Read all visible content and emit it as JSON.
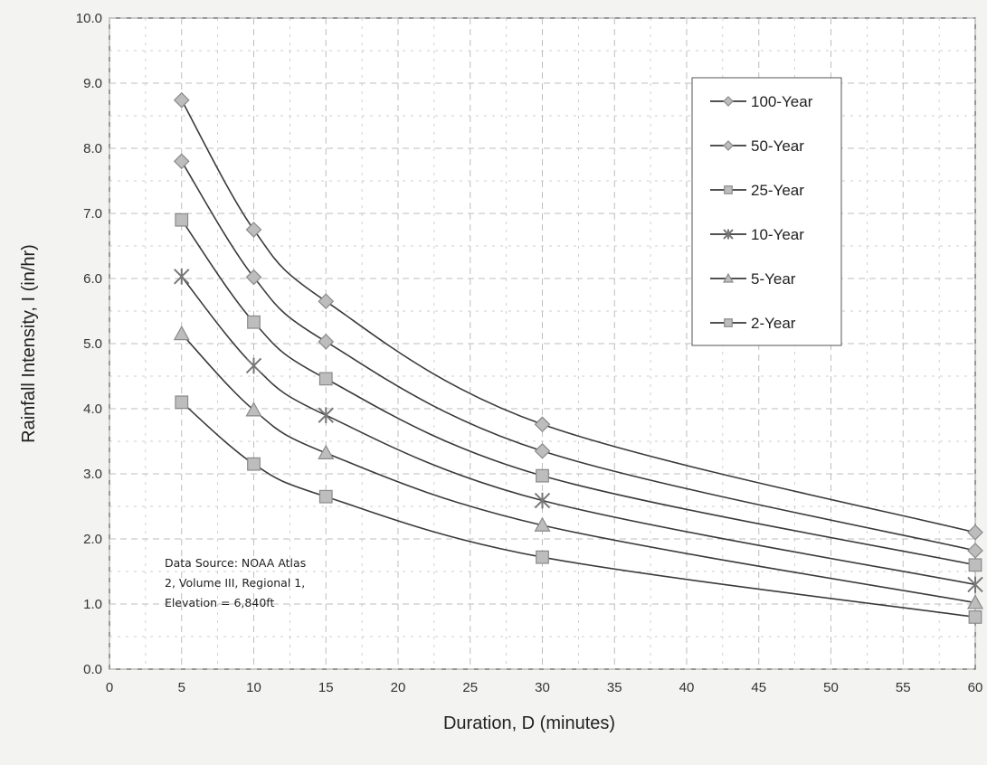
{
  "chart_data": {
    "type": "line",
    "title": "",
    "xlabel": "Duration,  D (minutes)",
    "ylabel": "Rainfall Intensity, I (in/hr)",
    "xlim": [
      0,
      60
    ],
    "ylim": [
      0,
      10
    ],
    "x_ticks": [
      "0",
      "5",
      "10",
      "15",
      "20",
      "25",
      "30",
      "35",
      "40",
      "45",
      "50",
      "55",
      "60"
    ],
    "y_ticks": [
      "0.0",
      "1.0",
      "2.0",
      "3.0",
      "4.0",
      "5.0",
      "6.0",
      "7.0",
      "8.0",
      "9.0",
      "10.0"
    ],
    "grid": true,
    "legend_position": "top-right",
    "x": [
      5,
      10,
      15,
      30,
      60
    ],
    "series": [
      {
        "name": "100-Year",
        "marker": "diamond",
        "values": [
          8.74,
          6.75,
          5.65,
          3.76,
          2.1
        ]
      },
      {
        "name": "50-Year",
        "marker": "diamond",
        "values": [
          7.8,
          6.02,
          5.03,
          3.35,
          1.82
        ]
      },
      {
        "name": "25-Year",
        "marker": "square",
        "values": [
          6.9,
          5.33,
          4.46,
          2.97,
          1.6
        ]
      },
      {
        "name": "10-Year",
        "marker": "star",
        "values": [
          6.03,
          4.66,
          3.9,
          2.59,
          1.3
        ]
      },
      {
        "name": "5-Year",
        "marker": "triangle",
        "values": [
          5.15,
          3.98,
          3.32,
          2.21,
          1.02
        ]
      },
      {
        "name": "2-Year",
        "marker": "square",
        "values": [
          4.1,
          3.15,
          2.65,
          1.72,
          0.8
        ]
      }
    ],
    "annotation": [
      "Data Source: NOAA Atlas",
      "2, Volume III, Regional 1,",
      "Elevation = 6,840ft"
    ]
  },
  "colors": {
    "plot_background": "#ffffff",
    "grid": "#bdbdbd",
    "line": "#3a3a3a",
    "marker_fill": "#bdbdbd",
    "marker_stroke": "#8a8a8a"
  }
}
